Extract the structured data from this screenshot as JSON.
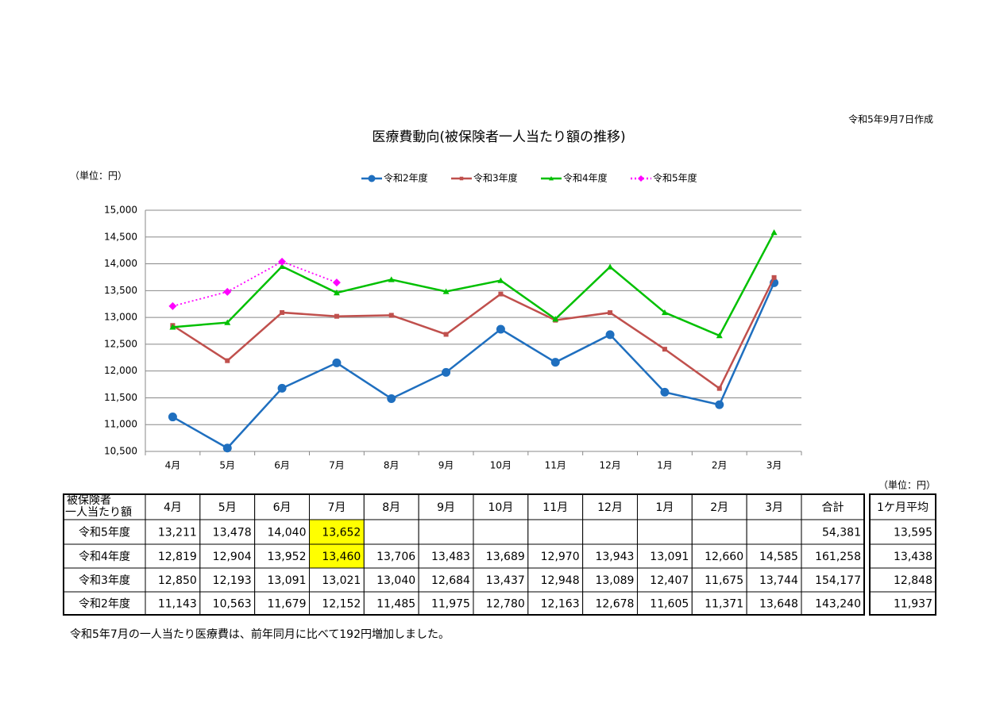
{
  "date_note": "令和5年9月7日作成",
  "chart_data": {
    "type": "line",
    "title": "医療費動向(被保険者一人当たり額の推移)",
    "unit": "（単位：円）",
    "categories": [
      "4月",
      "5月",
      "6月",
      "7月",
      "8月",
      "9月",
      "10月",
      "11月",
      "12月",
      "1月",
      "2月",
      "3月"
    ],
    "series": [
      {
        "name": "令和2年度",
        "color": "#1f6fbf",
        "marker": "circle",
        "dash": "solid",
        "values": [
          11143,
          10563,
          11679,
          12152,
          11485,
          11975,
          12780,
          12163,
          12678,
          11605,
          11371,
          13648
        ]
      },
      {
        "name": "令和3年度",
        "color": "#c0504d",
        "marker": "square",
        "dash": "solid",
        "values": [
          12850,
          12193,
          13091,
          13021,
          13040,
          12684,
          13437,
          12948,
          13089,
          12407,
          11675,
          13744
        ]
      },
      {
        "name": "令和4年度",
        "color": "#00c000",
        "marker": "triangle",
        "dash": "solid",
        "values": [
          12819,
          12904,
          13952,
          13460,
          13706,
          13483,
          13689,
          12970,
          13943,
          13091,
          12660,
          14585
        ]
      },
      {
        "name": "令和5年度",
        "color": "#ff00ff",
        "marker": "diamond",
        "dash": "dotted",
        "values": [
          13211,
          13478,
          14040,
          13652,
          null,
          null,
          null,
          null,
          null,
          null,
          null,
          null
        ]
      }
    ],
    "ylim": [
      10500,
      15000
    ],
    "yticks": [
      {
        "value": 10500,
        "label": "10,500"
      },
      {
        "value": 11000,
        "label": "11,000"
      },
      {
        "value": 11500,
        "label": "11,500"
      },
      {
        "value": 12000,
        "label": "12,000"
      },
      {
        "value": 12500,
        "label": "12,500"
      },
      {
        "value": 13000,
        "label": "13,000"
      },
      {
        "value": 13500,
        "label": "13,500"
      },
      {
        "value": 14000,
        "label": "14,000"
      },
      {
        "value": 14500,
        "label": "14,500"
      },
      {
        "value": 15000,
        "label": "15,000"
      }
    ],
    "grid": true,
    "legend": "top"
  },
  "table": {
    "unit": "（単位：円）",
    "corner": [
      "被保険者",
      "一人当たり額"
    ],
    "columns": [
      "4月",
      "5月",
      "6月",
      "7月",
      "8月",
      "9月",
      "10月",
      "11月",
      "12月",
      "1月",
      "2月",
      "3月"
    ],
    "total_header": "合計",
    "average_header": "1ケ月平均",
    "rows": [
      {
        "label": "令和5年度",
        "color": "#e020c0",
        "highlight": [
          3
        ],
        "values": [
          "13,211",
          "13,478",
          "14,040",
          "13,652",
          null,
          null,
          null,
          null,
          null,
          null,
          null,
          null
        ],
        "total": "54,381",
        "average": "13,595"
      },
      {
        "label": "令和4年度",
        "color": "#00b000",
        "highlight": [
          3
        ],
        "values": [
          "12,819",
          "12,904",
          "13,952",
          "13,460",
          "13,706",
          "13,483",
          "13,689",
          "12,970",
          "13,943",
          "13,091",
          "12,660",
          "14,585"
        ],
        "total": "161,258",
        "average": "13,438"
      },
      {
        "label": "令和3年度",
        "color": "#a0403c",
        "highlight": [],
        "values": [
          "12,850",
          "12,193",
          "13,091",
          "13,021",
          "13,040",
          "12,684",
          "13,437",
          "12,948",
          "13,089",
          "12,407",
          "11,675",
          "13,744"
        ],
        "total": "154,177",
        "average": "12,848"
      },
      {
        "label": "令和2年度",
        "color": "#0000cc",
        "highlight": [],
        "values": [
          "11,143",
          "10,563",
          "11,679",
          "12,152",
          "11,485",
          "11,975",
          "12,780",
          "12,163",
          "12,678",
          "11,605",
          "11,371",
          "13,648"
        ],
        "total": "143,240",
        "average": "11,937"
      }
    ]
  },
  "footnote": "令和5年7月の一人当たり医療費は、前年同月に比べて192円増加しました。"
}
